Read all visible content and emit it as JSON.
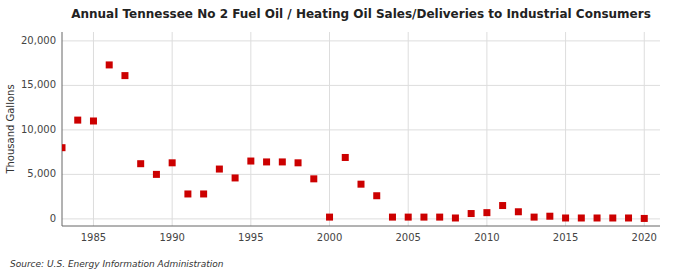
{
  "chart_data": {
    "type": "scatter",
    "title": "Annual Tennessee No 2 Fuel Oil / Heating Oil Sales/Deliveries to Industrial Consumers",
    "ylabel": "Thousand Gallons",
    "source": "Source: U.S. Energy Information Administration",
    "x": [
      1983,
      1984,
      1985,
      1986,
      1987,
      1988,
      1989,
      1990,
      1991,
      1992,
      1993,
      1994,
      1995,
      1996,
      1997,
      1998,
      1999,
      2000,
      2001,
      2002,
      2003,
      2004,
      2005,
      2006,
      2007,
      2008,
      2009,
      2010,
      2011,
      2012,
      2013,
      2014,
      2015,
      2016,
      2017,
      2018,
      2019,
      2020
    ],
    "values": [
      8000,
      11100,
      11000,
      17300,
      16100,
      6200,
      5000,
      6300,
      2800,
      2800,
      5600,
      4600,
      6500,
      6400,
      6400,
      6300,
      4500,
      200,
      6900,
      3900,
      2600,
      200,
      200,
      200,
      200,
      100,
      600,
      700,
      1500,
      800,
      200,
      300,
      100,
      100,
      100,
      100,
      100,
      50
    ],
    "color": "#cc0000",
    "marker": "square",
    "xlim": [
      1983,
      2021
    ],
    "ylim": [
      -800,
      21000
    ],
    "xticks": [
      1985,
      1990,
      1995,
      2000,
      2005,
      2010,
      2015,
      2020
    ],
    "yticks": [
      0,
      {
        "value": 5000,
        "label": "5,000"
      },
      {
        "value": 10000,
        "label": "10,000"
      },
      {
        "value": 15000,
        "label": "15,000"
      },
      {
        "value": 20000,
        "label": "20,000"
      }
    ],
    "grid": true
  }
}
